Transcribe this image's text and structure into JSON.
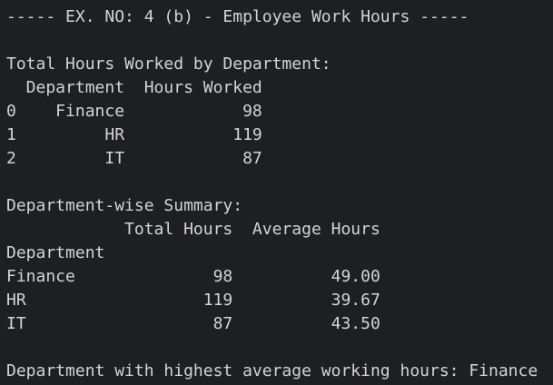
{
  "terminal": {
    "lines": [
      "----- EX. NO: 4 (b) - Employee Work Hours -----",
      "",
      "Total Hours Worked by Department:",
      "  Department  Hours Worked",
      "0    Finance            98",
      "1         HR           119",
      "2         IT            87",
      "",
      "Department-wise Summary:",
      "            Total Hours  Average Hours",
      "Department",
      "Finance              98          49.00",
      "HR                  119          39.67",
      "IT                   87          43.50",
      "",
      "Department with highest average working hours: Finance"
    ]
  }
}
